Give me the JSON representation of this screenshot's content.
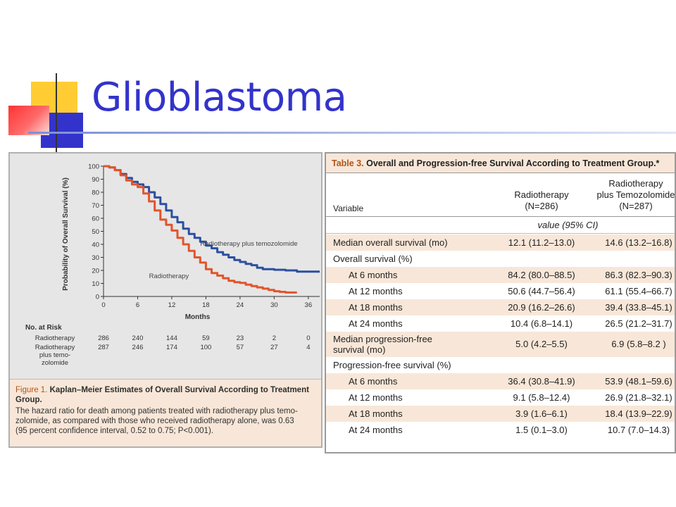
{
  "slide": {
    "title": "Glioblastoma",
    "colors": {
      "title": "#3333cc",
      "deco_yellow": "#ffcc33",
      "deco_blue": "#3333cc",
      "deco_red": "#ff3333"
    }
  },
  "figure": {
    "caption_title_number": "Figure 1.",
    "caption_title_text": "Kaplan–Meier Estimates of Overall Survival According to Treatment Group.",
    "caption_body": "The hazard ratio for death among patients treated with radiotherapy plus temo-\nzolomide, as compared with those who received radiotherapy alone, was 0.63\n(95 percent confidence interval, 0.52 to 0.75; P<0.001).",
    "at_risk": {
      "heading": "No. at Risk",
      "rows": [
        {
          "label": "Radiotherapy",
          "values": [
            "286",
            "240",
            "144",
            "59",
            "23",
            "2",
            "0"
          ]
        },
        {
          "label": "Radiotherapy",
          "label_extra": [
            "plus temo-",
            "zolomide"
          ],
          "values": [
            "287",
            "246",
            "174",
            "100",
            "57",
            "27",
            "4"
          ]
        }
      ]
    }
  },
  "chart_data": {
    "type": "line",
    "xlabel": "Months",
    "ylabel": "Probability of Overall Survival (%)",
    "xlim": [
      0,
      38
    ],
    "ylim": [
      0,
      100
    ],
    "x_ticks": [
      "0",
      "6",
      "12",
      "18",
      "24",
      "30",
      "36"
    ],
    "y_ticks": [
      "0",
      "10",
      "20",
      "30",
      "40",
      "50",
      "60",
      "70",
      "80",
      "90",
      "100"
    ],
    "grid": false,
    "series": [
      {
        "name": "Radiotherapy plus temozolomide",
        "color": "#2c4fa0",
        "x": [
          0,
          1,
          2,
          3,
          4,
          5,
          6,
          7,
          8,
          9,
          10,
          11,
          12,
          13,
          14,
          15,
          16,
          17,
          18,
          19,
          20,
          21,
          22,
          23,
          24,
          25,
          26,
          27,
          28,
          30,
          32,
          34,
          38
        ],
        "y": [
          100,
          99,
          97,
          94,
          91,
          88,
          86,
          84,
          80,
          76,
          71,
          66,
          61,
          57,
          52,
          48,
          45,
          42,
          39,
          37,
          34,
          32,
          30,
          28,
          26.5,
          25,
          24,
          22,
          21,
          20.5,
          20,
          19,
          19
        ]
      },
      {
        "name": "Radiotherapy",
        "color": "#e2542b",
        "x": [
          0,
          1,
          2,
          3,
          4,
          5,
          6,
          7,
          8,
          9,
          10,
          11,
          12,
          13,
          14,
          15,
          16,
          17,
          18,
          19,
          20,
          21,
          22,
          23,
          24,
          25,
          26,
          27,
          28,
          29,
          30,
          31,
          32,
          33,
          34
        ],
        "y": [
          100,
          99,
          97,
          93,
          89,
          86,
          84,
          79,
          73,
          66,
          59,
          55,
          50.6,
          45,
          40,
          35,
          30,
          26,
          21,
          18,
          16,
          14,
          12,
          11,
          10.4,
          9,
          8,
          7,
          6,
          5,
          4,
          3.5,
          3,
          3,
          3
        ]
      }
    ],
    "annotations": [
      "Radiotherapy plus temozolomide",
      "Radiotherapy"
    ]
  },
  "table": {
    "number": "Table 3.",
    "title": "Overall and Progression-free Survival According to Treatment Group.*",
    "col_variable": "Variable",
    "col1": "Radiotherapy\n(N=286)",
    "col2": "Radiotherapy\nplus Temozolomide\n(N=287)",
    "subheader": "value (95% CI)",
    "rows": [
      {
        "label": "Median overall survival (mo)",
        "v1": "12.1 (11.2–13.0)",
        "v2": "14.6 (13.2–16.8)",
        "indent": false,
        "shade": true
      },
      {
        "label": "Overall survival (%)",
        "v1": "",
        "v2": "",
        "indent": false,
        "shade": false
      },
      {
        "label": "At 6 months",
        "v1": "84.2 (80.0–88.5)",
        "v2": "86.3 (82.3–90.3)",
        "indent": true,
        "shade": true
      },
      {
        "label": "At 12 months",
        "v1": "50.6 (44.7–56.4)",
        "v2": "61.1 (55.4–66.7)",
        "indent": true,
        "shade": false
      },
      {
        "label": "At 18 months",
        "v1": "20.9 (16.2–26.6)",
        "v2": "39.4 (33.8–45.1)",
        "indent": true,
        "shade": true
      },
      {
        "label": "At 24 months",
        "v1": "10.4 (6.8–14.1)",
        "v2": "26.5 (21.2–31.7)",
        "indent": true,
        "shade": false
      },
      {
        "label": "Median progression-free\n        survival (mo)",
        "v1": "5.0 (4.2–5.5)",
        "v2": "6.9 (5.8–8.2 )",
        "indent": false,
        "shade": true,
        "tall": true
      },
      {
        "label": "Progression-free survival (%)",
        "v1": "",
        "v2": "",
        "indent": false,
        "shade": false
      },
      {
        "label": "At 6 months",
        "v1": "36.4 (30.8–41.9)",
        "v2": "53.9 (48.1–59.6)",
        "indent": true,
        "shade": true
      },
      {
        "label": "At 12 months",
        "v1": "9.1 (5.8–12.4)",
        "v2": "26.9 (21.8–32.1)",
        "indent": true,
        "shade": false
      },
      {
        "label": "At 18 months",
        "v1": "3.9 (1.6–6.1)",
        "v2": "18.4 (13.9–22.9)",
        "indent": true,
        "shade": true
      },
      {
        "label": "At 24 months",
        "v1": "1.5 (0.1–3.0)",
        "v2": "10.7 (7.0–14.3)",
        "indent": true,
        "shade": false
      }
    ]
  }
}
